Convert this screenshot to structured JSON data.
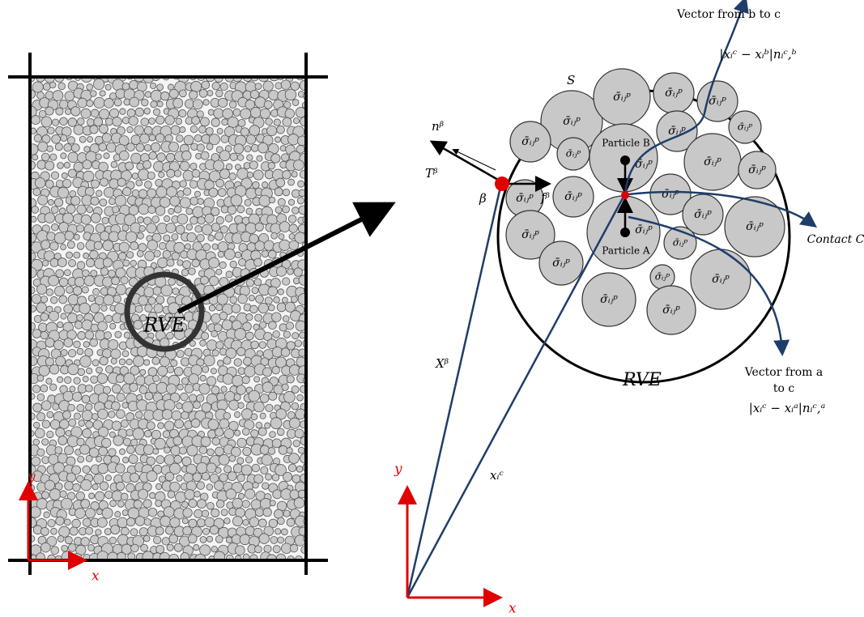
{
  "left_panel": {
    "label": "RVE",
    "x_axis": "x",
    "y_axis": "y"
  },
  "rve_panel": {
    "boundary_label": "S",
    "normal_label": "nᵝ",
    "traction_label": "Tᵝ",
    "point_label": "β",
    "force_label": "fᵝ",
    "particle_b": "Particle B",
    "particle_a": "Particle A",
    "contact_label": "Contact C",
    "particle_stress_label": "σ̄ᵢⱼᵖ",
    "rve_label": "RVE",
    "position_boundary": "Xᵝ",
    "position_contact": "xᵢᶜ",
    "x_axis": "x",
    "y_axis": "y"
  },
  "annotations": {
    "vector_bc_title": "Vector from b to c",
    "vector_bc_formula": "|xᵢᶜ − xᵢᵇ|nᵢᶜ,ᵇ",
    "vector_ac_title_1": "Vector from a",
    "vector_ac_title_2": "to c",
    "vector_ac_formula": "|xᵢᶜ − xᵢᵃ|nᵢᶜ,ᵃ"
  }
}
